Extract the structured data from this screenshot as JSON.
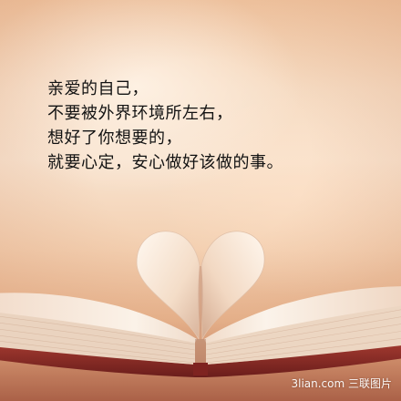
{
  "quote": {
    "lines": [
      "亲爱的自己，",
      "不要被外界环境所左右，",
      "想好了你想要的，",
      "就要心定，安心做好该做的事。"
    ]
  },
  "watermark": {
    "text": "3lian.com 三联图片"
  },
  "colors": {
    "background_warm": "#f3cfae",
    "text": "#121212",
    "page_cream": "#fbf3ea",
    "book_cover": "#8a2a25"
  },
  "icons": {
    "heart": "heart-shaped-book-pages"
  }
}
